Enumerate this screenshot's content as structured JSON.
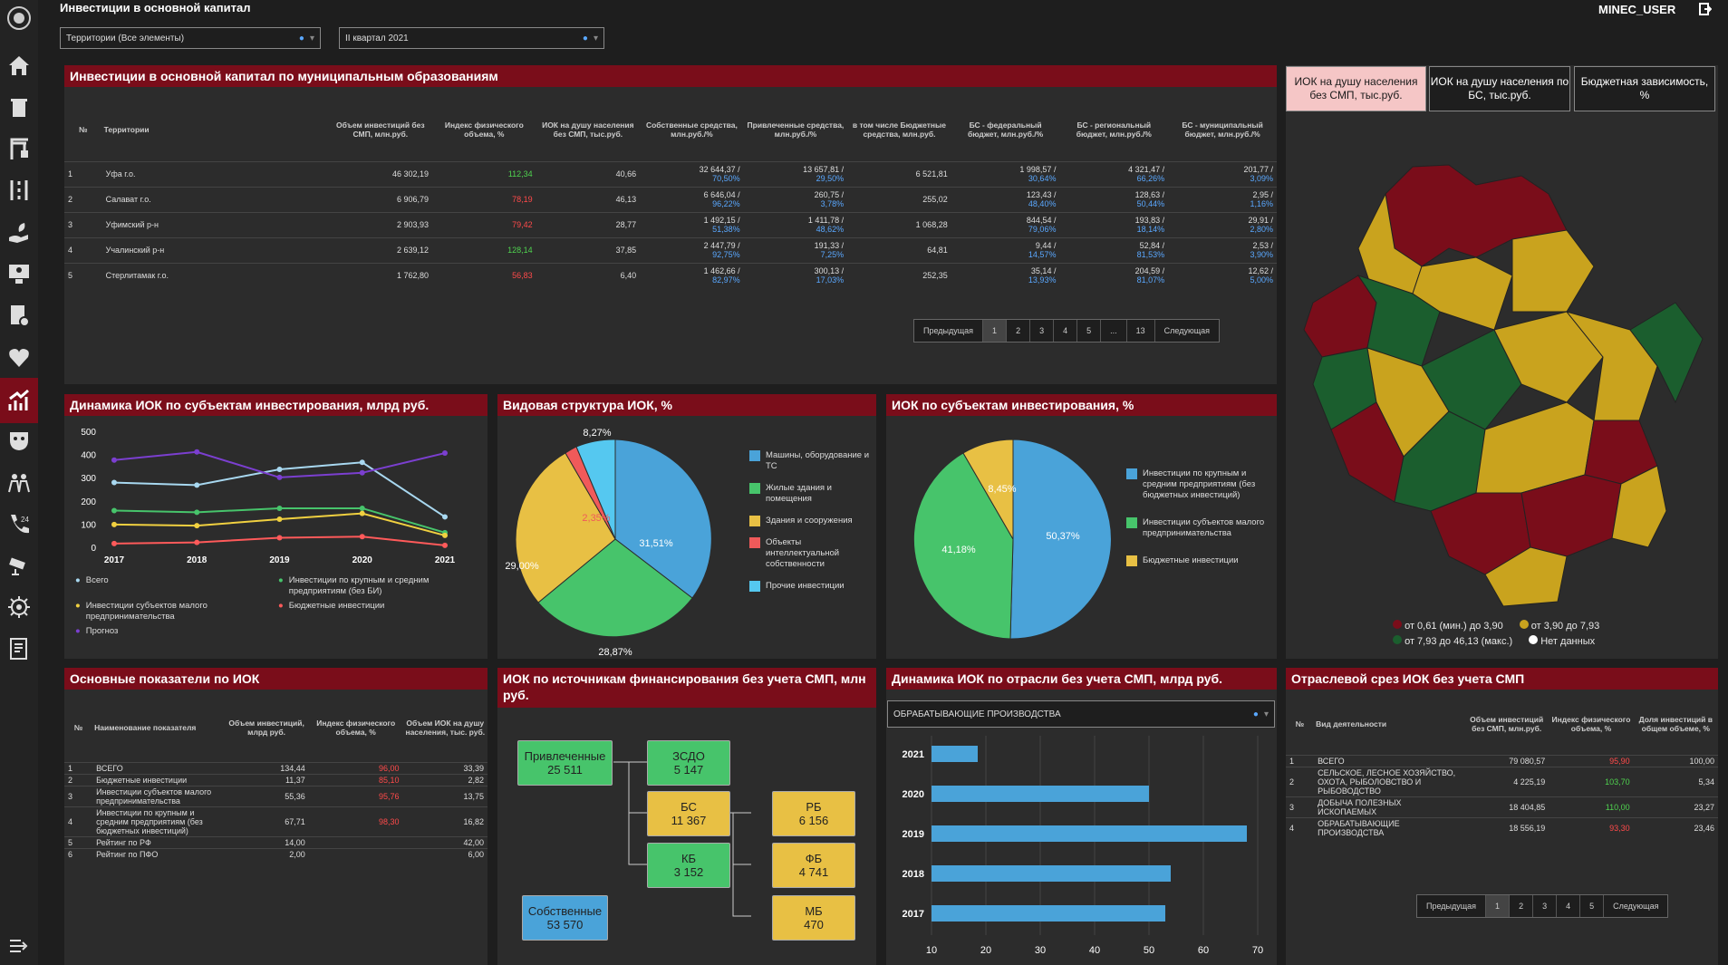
{
  "header": {
    "title": "Инвестиции в основной капитал",
    "user": "MINEC_USER",
    "filter_territory": "Территории (Все элементы)",
    "filter_period": "II квартал 2021"
  },
  "colors": {
    "accent": "#7a0d1a",
    "blue": "#4aa3d9",
    "green": "#47c46b",
    "yellow": "#e8c044",
    "red": "#f05a5a",
    "purple": "#7b3fd0"
  },
  "main_table": {
    "title": "Инвестиции в основной капитал по муниципальным образованиям",
    "headers": [
      "№",
      "Территории",
      "Объем инвестиций без СМП, млн.руб.",
      "Индекс физического объема, %",
      "ИОК на душу населения без СМП, тыс.руб.",
      "Собственные средства, млн.руб./%",
      "Привлеченные средства, млн.руб./%",
      "в том числе Бюджетные средства, млн.руб.",
      "БС - федеральный бюджет, млн.руб./%",
      "БС - региональный бюджет, млн.руб./%",
      "БС - муниципальный бюджет, млн.руб./%"
    ],
    "rows": [
      {
        "n": "1",
        "name": "Уфа г.о.",
        "vol": "46 302,19",
        "idx": "112,34",
        "ic": "grn",
        "perc": "40,66",
        "own": "32 644,37 /",
        "own_p": "70,50%",
        "att": "13 657,81 /",
        "att_p": "29,50%",
        "bud": "6 521,81",
        "fed": "1 998,57 /",
        "fed_p": "30,64%",
        "reg": "4 321,47 /",
        "reg_p": "66,26%",
        "mun": "201,77 /",
        "mun_p": "3,09%"
      },
      {
        "n": "2",
        "name": "Салават г.о.",
        "vol": "6 906,79",
        "idx": "78,19",
        "ic": "red",
        "perc": "46,13",
        "own": "6 646,04 /",
        "own_p": "96,22%",
        "att": "260,75 /",
        "att_p": "3,78%",
        "bud": "255,02",
        "fed": "123,43 /",
        "fed_p": "48,40%",
        "reg": "128,63 /",
        "reg_p": "50,44%",
        "mun": "2,95 /",
        "mun_p": "1,16%"
      },
      {
        "n": "3",
        "name": "Уфимский р-н",
        "vol": "2 903,93",
        "idx": "79,42",
        "ic": "red",
        "perc": "28,77",
        "own": "1 492,15 /",
        "own_p": "51,38%",
        "att": "1 411,78 /",
        "att_p": "48,62%",
        "bud": "1 068,28",
        "fed": "844,54 /",
        "fed_p": "79,06%",
        "reg": "193,83 /",
        "reg_p": "18,14%",
        "mun": "29,91 /",
        "mun_p": "2,80%"
      },
      {
        "n": "4",
        "name": "Учалинский р-н",
        "vol": "2 639,12",
        "idx": "128,14",
        "ic": "grn",
        "perc": "37,85",
        "own": "2 447,79 /",
        "own_p": "92,75%",
        "att": "191,33 /",
        "att_p": "7,25%",
        "bud": "64,81",
        "fed": "9,44 /",
        "fed_p": "14,57%",
        "reg": "52,84 /",
        "reg_p": "81,53%",
        "mun": "2,53 /",
        "mun_p": "3,90%"
      },
      {
        "n": "5",
        "name": "Стерлитамак г.о.",
        "vol": "1 762,80",
        "idx": "56,83",
        "ic": "red",
        "perc": "6,40",
        "own": "1 462,66 /",
        "own_p": "82,97%",
        "att": "300,13 /",
        "att_p": "17,03%",
        "bud": "252,35",
        "fed": "35,14 /",
        "fed_p": "13,93%",
        "reg": "204,59 /",
        "reg_p": "81,07%",
        "mun": "12,62 /",
        "mun_p": "5,00%"
      }
    ],
    "pagination": [
      "Предыдущая",
      "1",
      "2",
      "3",
      "4",
      "5",
      "...",
      "13",
      "Следующая"
    ]
  },
  "map_panel": {
    "tabs": [
      "ИОК на душу населения без СМП, тыс.руб.",
      "ИОК на душу населения по БС, тыс.руб.",
      "Бюджетная зависимость, %"
    ],
    "legend": [
      "от 0,61 (мин.) до 3,90",
      "от 3,90 до 7,93",
      "от 7,93 до 46,13 (макс.)",
      "Нет данных"
    ]
  },
  "line_chart": {
    "title": "Динамика ИОК по субъектам инвестирования, млрд руб.",
    "legend": [
      "Всего",
      "Инвестиции по крупным и средним предприятиям (без БИ)",
      "Инвестиции субъектов малого предпринимательства",
      "Бюджетные инвестиции",
      "Прогноз"
    ]
  },
  "pie1": {
    "title": "Видовая структура ИОК, %",
    "labels": [
      "31,51%",
      "28,87%",
      "29,00%",
      "2,35%",
      "8,27%"
    ],
    "legend": [
      "Машины, оборудование и ТС",
      "Жилые здания и помещения",
      "Здания и сооружения",
      "Объекты интеллектуальной собственности",
      "Прочие инвестиции"
    ]
  },
  "pie2": {
    "title": "ИОК по субъектам инвестирования, %",
    "labels": [
      "50,37%",
      "41,18%",
      "8,45%"
    ],
    "legend": [
      "Инвестиции по крупным и средним предприятиям (без бюджетных инвестиций)",
      "Инвестиции субъектов малого предпринимательства",
      "Бюджетные инвестиции"
    ]
  },
  "indicators": {
    "title": "Основные показатели по ИОК",
    "headers": [
      "№",
      "Наименование показателя",
      "Объем инвестиций, млрд руб.",
      "Индекс физического объема, %",
      "Объем ИОК на душу населения, тыс. руб."
    ],
    "rows": [
      {
        "n": "1",
        "name": "ВСЕГО",
        "v": "134,44",
        "i": "96,00",
        "ic": "red",
        "p": "33,39"
      },
      {
        "n": "2",
        "name": "Бюджетные инвестиции",
        "v": "11,37",
        "i": "85,10",
        "ic": "red",
        "p": "2,82"
      },
      {
        "n": "3",
        "name": "Инвестиции субъектов малого предпринимательства",
        "v": "55,36",
        "i": "95,76",
        "ic": "red",
        "p": "13,75"
      },
      {
        "n": "4",
        "name": "Инвестиции по крупным и средним предприятиям (без бюджетных инвестиций)",
        "v": "67,71",
        "i": "98,30",
        "ic": "red",
        "p": "16,82"
      },
      {
        "n": "5",
        "name": "Рейтинг по РФ",
        "v": "14,00",
        "i": "",
        "ic": "",
        "p": "42,00"
      },
      {
        "n": "6",
        "name": "Рейтинг по ПФО",
        "v": "2,00",
        "i": "",
        "ic": "",
        "p": "6,00"
      }
    ]
  },
  "sources": {
    "title": "ИОК по источникам финансирования без учета СМП, млн руб.",
    "att_label": "Привлеченные",
    "att_val": "25 511",
    "zsdo_label": "ЗСДО",
    "zsdo_val": "5 147",
    "bs_label": "БС",
    "bs_val": "11 367",
    "kb_label": "КБ",
    "kb_val": "3 152",
    "rb_label": "РБ",
    "rb_val": "6 156",
    "fb_label": "ФБ",
    "fb_val": "4 741",
    "mb_label": "МБ",
    "mb_val": "470",
    "own_label": "Собственные",
    "own_val": "53 570"
  },
  "bar_chart": {
    "title": "Динамика ИОК по отрасли без учета СМП, млрд руб.",
    "filter": "ОБРАБАТЫВАЮЩИЕ ПРОИЗВОДСТВА"
  },
  "sector": {
    "title": "Отраслевой срез ИОК без учета СМП",
    "headers": [
      "№",
      "Вид деятельности",
      "Объем инвестиций без СМП, млн.руб.",
      "Индекс физического объема, %",
      "Доля инвестиций в общем объеме, %"
    ],
    "rows": [
      {
        "n": "1",
        "name": "ВСЕГО",
        "v": "79 080,57",
        "i": "95,90",
        "ic": "red",
        "d": "100,00"
      },
      {
        "n": "2",
        "name": "СЕЛЬСКОЕ, ЛЕСНОЕ ХОЗЯЙСТВО, ОХОТА, РЫБОЛОВСТВО И РЫБОВОДСТВО",
        "v": "4 225,19",
        "i": "103,70",
        "ic": "grn",
        "d": "5,34"
      },
      {
        "n": "3",
        "name": "ДОБЫЧА ПОЛЕЗНЫХ ИСКОПАЕМЫХ",
        "v": "18 404,85",
        "i": "110,00",
        "ic": "grn",
        "d": "23,27"
      },
      {
        "n": "4",
        "name": "ОБРАБАТЫВАЮЩИЕ ПРОИЗВОДСТВА",
        "v": "18 556,19",
        "i": "93,30",
        "ic": "red",
        "d": "23,46"
      }
    ],
    "pagination": [
      "Предыдущая",
      "1",
      "2",
      "3",
      "4",
      "5",
      "Следующая"
    ]
  },
  "chart_data": [
    {
      "type": "line",
      "title": "Динамика ИОК по субъектам инвестирования, млрд руб.",
      "categories": [
        "2017",
        "2018",
        "2019",
        "2020",
        "2021"
      ],
      "ylim": [
        0,
        500
      ],
      "yticks": [
        "500",
        "400",
        "300",
        "200",
        "100",
        "0"
      ],
      "series": [
        {
          "name": "Всего",
          "values": [
            283,
            272,
            340,
            370,
            135
          ],
          "color": "#a8d8f0"
        },
        {
          "name": "Прогноз",
          "values": [
            380,
            415,
            305,
            325,
            410
          ],
          "color": "#7b3fd0"
        },
        {
          "name": "Инвестиции по крупным и средним предприятиям (без БИ)",
          "values": [
            162,
            155,
            172,
            172,
            67
          ],
          "color": "#47c46b"
        },
        {
          "name": "Инвестиции субъектов малого предпринимательства",
          "values": [
            102,
            97,
            125,
            150,
            55
          ],
          "color": "#f0d040"
        },
        {
          "name": "Бюджетные инвестиции",
          "values": [
            20,
            25,
            45,
            50,
            12
          ],
          "color": "#ff5a5a"
        }
      ]
    },
    {
      "type": "pie",
      "title": "Видовая структура ИОК, %",
      "categories": [
        "Машины, оборудование и ТС",
        "Жилые здания и помещения",
        "Здания и сооружения",
        "Объекты интеллектуальной собственности",
        "Прочие инвестиции"
      ],
      "values": [
        31.51,
        28.87,
        29.0,
        2.35,
        8.27
      ]
    },
    {
      "type": "pie",
      "title": "ИОК по субъектам инвестирования, %",
      "categories": [
        "Инвестиции по крупным и средним предприятиям (без бюджетных инвестиций)",
        "Инвестиции субъектов малого предпринимательства",
        "Бюджетные инвестиции"
      ],
      "values": [
        50.37,
        41.18,
        8.45
      ]
    },
    {
      "type": "bar",
      "title": "Динамика ИОК по отрасли без учета СМП, млрд руб.",
      "categories": [
        "2021",
        "2020",
        "2019",
        "2018",
        "2017"
      ],
      "values": [
        18.5,
        50,
        68,
        54,
        53
      ],
      "xlim": [
        10,
        70
      ],
      "xticks": [
        "10",
        "20",
        "30",
        "40",
        "50",
        "60",
        "70"
      ]
    }
  ]
}
